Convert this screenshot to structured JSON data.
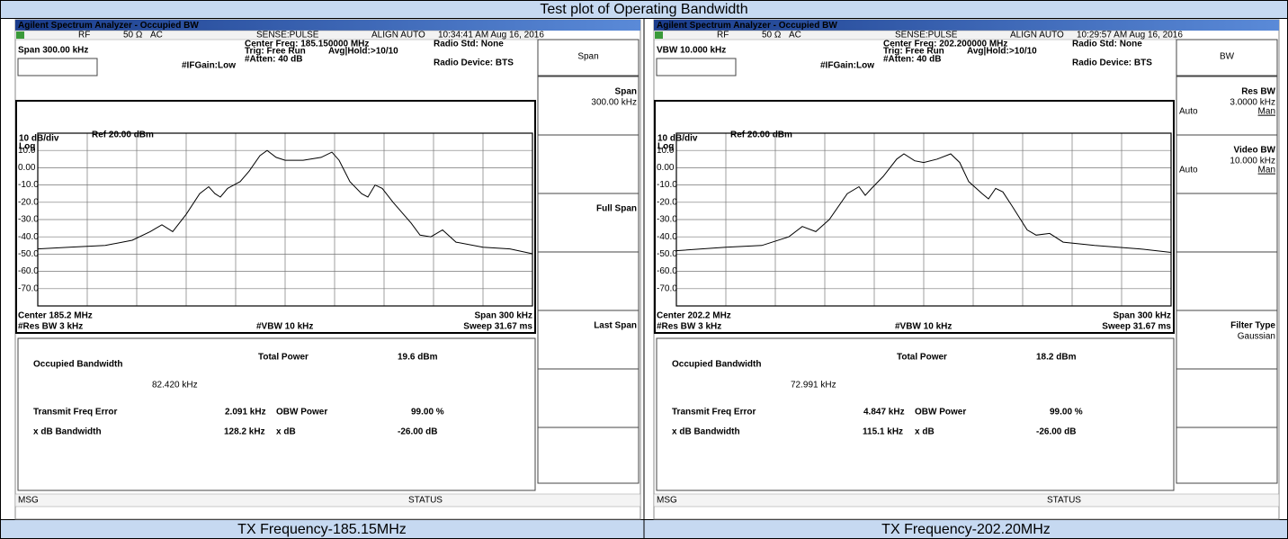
{
  "header": {
    "title": "Test plot of Operating Bandwidth"
  },
  "panels": [
    {
      "window_title": "Agilent Spectrum Analyzer - Occupied BW",
      "status": {
        "rf": "RF",
        "impedance": "50 Ω",
        "coupling": "AC",
        "sense": "SENSE:PULSE",
        "align": "ALIGN AUTO",
        "timestamp": "10:34:41 AM Aug 16, 2016"
      },
      "active_function": "Span 300.00 kHz",
      "settings": {
        "center_freq": "Center Freq: 185.150000 MHz",
        "trig": "Trig: Free Run",
        "avg_hold": "Avg|Hold:>10/10",
        "radio_std": "Radio Std: None",
        "if_gain": "#IFGain:Low",
        "atten": "#Atten: 40 dB",
        "radio_device": "Radio Device: BTS"
      },
      "scale": "10 dB/div",
      "ref_level": "Ref 20.00 dBm",
      "log": "Log",
      "y_labels": [
        "10.0",
        "0.00",
        "-10.0",
        "-20.0",
        "-30.0",
        "-40.0",
        "-50.0",
        "-60.0",
        "-70.0"
      ],
      "footer": {
        "center": "Center 185.2 MHz",
        "span": "Span 300 kHz",
        "res_bw": "#Res BW 3 kHz",
        "vbw": "#VBW 10 kHz",
        "sweep": "Sweep 31.67 ms"
      },
      "results": {
        "obw_label": "Occupied Bandwidth",
        "obw_value": "82.420 kHz",
        "total_power_label": "Total Power",
        "total_power": "19.6 dBm",
        "freq_error_label": "Transmit Freq Error",
        "freq_error": "2.091 kHz",
        "obw_power_label": "OBW Power",
        "obw_power": "99.00 %",
        "xdb_bw_label": "x dB Bandwidth",
        "xdb_bw": "128.2 kHz",
        "xdb_label": "x dB",
        "xdb": "-26.00 dB"
      },
      "msg": "MSG",
      "status_label": "STATUS",
      "menu_title": "Span",
      "softkeys": [
        {
          "label": "Span",
          "value": "300.00 kHz"
        },
        {
          "label": "Full Span"
        },
        {
          "label": "Last Span"
        }
      ],
      "caption": "TX Frequency-185.15MHz"
    },
    {
      "window_title": "Agilent Spectrum Analyzer - Occupied BW",
      "status": {
        "rf": "RF",
        "impedance": "50 Ω",
        "coupling": "AC",
        "sense": "SENSE:PULSE",
        "align": "ALIGN AUTO",
        "timestamp": "10:29:57 AM Aug 16, 2016"
      },
      "active_function": "VBW 10.000 kHz",
      "settings": {
        "center_freq": "Center Freq: 202.200000 MHz",
        "trig": "Trig: Free Run",
        "avg_hold": "Avg|Hold:>10/10",
        "radio_std": "Radio Std: None",
        "if_gain": "#IFGain:Low",
        "atten": "#Atten: 40 dB",
        "radio_device": "Radio Device: BTS"
      },
      "scale": "10 dB/div",
      "ref_level": "Ref 20.00 dBm",
      "log": "Log",
      "y_labels": [
        "10.0",
        "0.00",
        "-10.0",
        "-20.0",
        "-30.0",
        "-40.0",
        "-50.0",
        "-60.0",
        "-70.0"
      ],
      "footer": {
        "center": "Center 202.2 MHz",
        "span": "Span 300 kHz",
        "res_bw": "#Res BW 3 kHz",
        "vbw": "#VBW 10 kHz",
        "sweep": "Sweep 31.67 ms"
      },
      "results": {
        "obw_label": "Occupied Bandwidth",
        "obw_value": "72.991 kHz",
        "total_power_label": "Total Power",
        "total_power": "18.2 dBm",
        "freq_error_label": "Transmit Freq Error",
        "freq_error": "4.847 kHz",
        "obw_power_label": "OBW Power",
        "obw_power": "99.00 %",
        "xdb_bw_label": "x dB Bandwidth",
        "xdb_bw": "115.1 kHz",
        "xdb_label": "x dB",
        "xdb": "-26.00 dB"
      },
      "msg": "MSG",
      "status_label": "STATUS",
      "menu_title": "BW",
      "softkeys": [
        {
          "label": "Res BW",
          "value": "3.0000 kHz",
          "mode": "Auto",
          "alt": "Man"
        },
        {
          "label": "Video BW",
          "value": "10.000 kHz",
          "mode": "Auto",
          "alt": "Man"
        },
        {
          "label": "Filter Type",
          "value": "Gaussian"
        }
      ],
      "caption": "TX Frequency-202.20MHz"
    }
  ]
}
